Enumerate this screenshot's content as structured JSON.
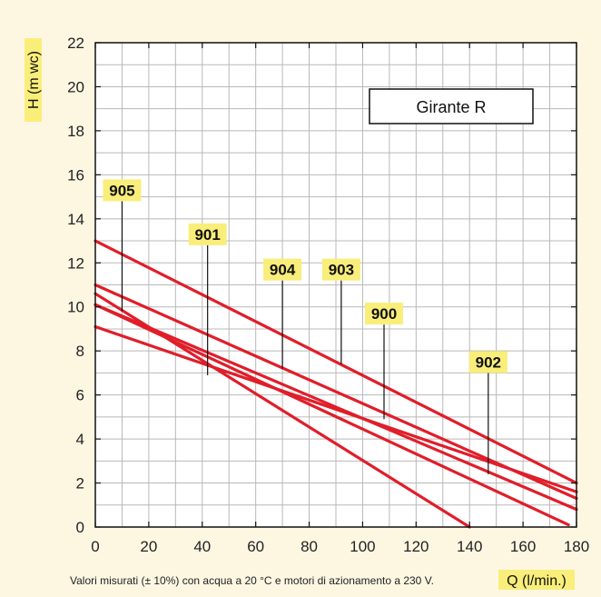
{
  "chart_data": {
    "type": "line",
    "title": "",
    "xlabel": "Q (l/min.)",
    "ylabel": "H (m wc)",
    "xlim": [
      0,
      180
    ],
    "ylim": [
      0,
      22
    ],
    "xticks": [
      "0",
      "20",
      "40",
      "60",
      "80",
      "100",
      "120",
      "140",
      "160",
      "180"
    ],
    "yticks": [
      "0",
      "2",
      "4",
      "6",
      "8",
      "10",
      "12",
      "14",
      "16",
      "18",
      "20",
      "22"
    ],
    "grid": true,
    "box_label": "Girante R",
    "note": "Valori misurati (± 10%) con acqua a 20 °C e motori di azionamento a 230 V.",
    "series": [
      {
        "name": "905",
        "points": [
          [
            0,
            10.6
          ],
          [
            140,
            0
          ]
        ],
        "callout": {
          "at": [
            10,
            9.8
          ],
          "label_at": [
            10,
            14.8
          ]
        }
      },
      {
        "name": "901",
        "points": [
          [
            0,
            10.1
          ],
          [
            177,
            0.1
          ]
        ],
        "callout": {
          "at": [
            42,
            6.9
          ],
          "label_at": [
            42,
            12.8
          ]
        }
      },
      {
        "name": "904",
        "points": [
          [
            0,
            11.0
          ],
          [
            180,
            1.3
          ]
        ],
        "callout": {
          "at": [
            70,
            7.2
          ],
          "label_at": [
            70,
            11.2
          ]
        }
      },
      {
        "name": "903",
        "points": [
          [
            0,
            13.0
          ],
          [
            180,
            2.0
          ]
        ],
        "callout": {
          "at": [
            92,
            7.4
          ],
          "label_at": [
            92,
            11.2
          ]
        }
      },
      {
        "name": "900",
        "points": [
          [
            0,
            9.1
          ],
          [
            180,
            1.6
          ]
        ],
        "callout": {
          "at": [
            108,
            4.9
          ],
          "label_at": [
            108,
            9.2
          ]
        }
      },
      {
        "name": "902",
        "points": [
          [
            0,
            10.1
          ],
          [
            180,
            0.8
          ]
        ],
        "callout": {
          "at": [
            147,
            2.4
          ],
          "label_at": [
            147,
            7.0
          ]
        }
      }
    ],
    "colors": {
      "line": "#e01e2a",
      "tag": "#f9ee7a",
      "grid": "#b8b8b8",
      "background": "#fdf7e2"
    }
  }
}
